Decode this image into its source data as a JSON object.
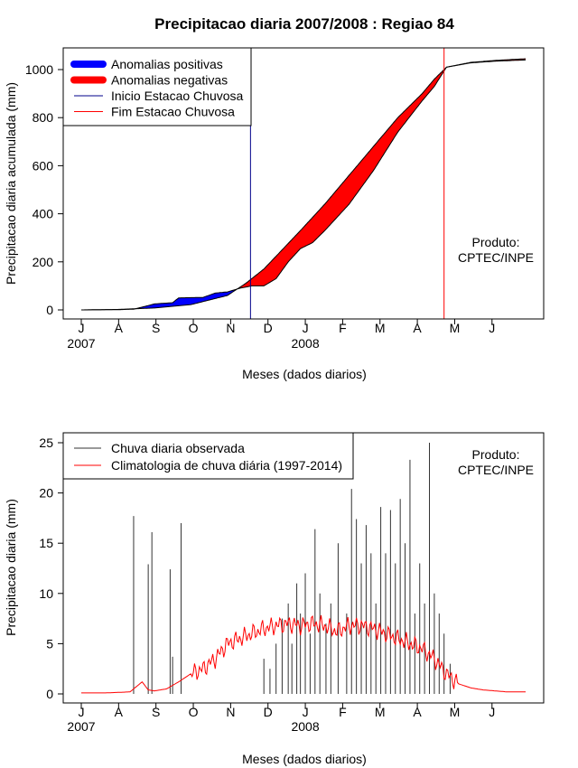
{
  "title": "Precipitacao diaria 2007/2008 : Regiao 84",
  "colors": {
    "positive": "#0000ff",
    "negative": "#ff0000",
    "start_line": "#00008b",
    "end_line": "#ff0000",
    "observed": "#333333",
    "climatology": "#ff0000"
  },
  "chart_data": [
    {
      "type": "area",
      "title": "Precipitacao diaria 2007/2008 : Regiao 84",
      "xlabel": "Meses (dados diarios)",
      "ylabel": "Precipitacao diaria acumulada (mm)",
      "x_ticks": [
        "J",
        "A",
        "S",
        "O",
        "N",
        "D",
        "J",
        "F",
        "M",
        "A",
        "M",
        "J"
      ],
      "year_labels": [
        {
          "month_index": 0,
          "label": "2007"
        },
        {
          "month_index": 6,
          "label": "2008"
        }
      ],
      "x_range": [
        0,
        365
      ],
      "ylim": [
        0,
        1100
      ],
      "y_ticks": [
        0,
        200,
        400,
        600,
        800,
        1000
      ],
      "legend_position": "top-left",
      "legend": [
        {
          "label": "Anomalias positivas",
          "kind": "thick",
          "color": "#0000ff"
        },
        {
          "label": "Anomalias negativas",
          "kind": "thick",
          "color": "#ff0000"
        },
        {
          "label": "Inicio Estacao Chuvosa",
          "kind": "thin",
          "color": "#00008b"
        },
        {
          "label": "Fim Estacao Chuvosa",
          "kind": "thin",
          "color": "#ff0000"
        }
      ],
      "annotation": [
        "Produto:",
        "CPTEC/INPE"
      ],
      "start_day": 139,
      "end_day": 298,
      "climatology_cumulative": {
        "x": [
          0,
          30,
          60,
          90,
          120,
          135,
          150,
          165,
          180,
          200,
          220,
          240,
          260,
          280,
          290,
          300,
          320,
          340,
          365
        ],
        "y": [
          0,
          2,
          8,
          22,
          60,
          110,
          170,
          250,
          330,
          440,
          560,
          680,
          800,
          900,
          960,
          1010,
          1030,
          1038,
          1045
        ]
      },
      "observed_cumulative": {
        "x": [
          0,
          30,
          43,
          55,
          60,
          75,
          80,
          100,
          110,
          120,
          130,
          140,
          150,
          160,
          170,
          180,
          190,
          200,
          220,
          240,
          260,
          280,
          290,
          300,
          320,
          340,
          365
        ],
        "y": [
          0,
          1,
          3,
          18,
          25,
          30,
          50,
          52,
          70,
          75,
          90,
          100,
          100,
          130,
          200,
          255,
          280,
          330,
          440,
          580,
          740,
          870,
          930,
          1010,
          1028,
          1035,
          1040
        ]
      }
    },
    {
      "type": "bar",
      "xlabel": "Meses (dados diarios)",
      "ylabel": "Precipitacao diaria (mm)",
      "x_ticks": [
        "J",
        "A",
        "S",
        "O",
        "N",
        "D",
        "J",
        "F",
        "M",
        "A",
        "M",
        "J"
      ],
      "year_labels": [
        {
          "month_index": 0,
          "label": "2007"
        },
        {
          "month_index": 6,
          "label": "2008"
        }
      ],
      "x_range": [
        0,
        365
      ],
      "ylim": [
        -0.8,
        26
      ],
      "y_ticks": [
        0,
        5,
        10,
        15,
        20,
        25
      ],
      "legend_position": "top-left",
      "legend": [
        {
          "label": "Chuva diaria observada",
          "color": "#333333"
        },
        {
          "label": "Climatologia de chuva diária (1997-2014)",
          "color": "#ff0000"
        }
      ],
      "annotation": [
        "Produto:",
        "CPTEC/INPE"
      ],
      "observed_daily_notable": [
        [
          43,
          17.7
        ],
        [
          55,
          12.9
        ],
        [
          58,
          16.1
        ],
        [
          73,
          12.4
        ],
        [
          75,
          3.7
        ],
        [
          82,
          17.0
        ],
        [
          150,
          3.5
        ],
        [
          155,
          2.5
        ],
        [
          160,
          5.0
        ],
        [
          165,
          7.5
        ],
        [
          170,
          9.0
        ],
        [
          173,
          5.0
        ],
        [
          177,
          11.0
        ],
        [
          180,
          8.0
        ],
        [
          184,
          12.0
        ],
        [
          188,
          6.0
        ],
        [
          192,
          16.4
        ],
        [
          196,
          10.0
        ],
        [
          201,
          7.0
        ],
        [
          205,
          9.0
        ],
        [
          211,
          15.0
        ],
        [
          218,
          8.0
        ],
        [
          222,
          20.4
        ],
        [
          226,
          17.4
        ],
        [
          230,
          13.0
        ],
        [
          234,
          16.8
        ],
        [
          238,
          14.0
        ],
        [
          242,
          9.0
        ],
        [
          246,
          18.6
        ],
        [
          250,
          14.0
        ],
        [
          254,
          18.3
        ],
        [
          258,
          13.0
        ],
        [
          262,
          19.4
        ],
        [
          266,
          15.0
        ],
        [
          270,
          23.3
        ],
        [
          274,
          8.0
        ],
        [
          278,
          13.0
        ],
        [
          282,
          9.0
        ],
        [
          286,
          25.0
        ],
        [
          290,
          10.0
        ],
        [
          294,
          8.0
        ],
        [
          298,
          6.0
        ],
        [
          303,
          3.0
        ]
      ],
      "climatology_daily": {
        "x": [
          0,
          20,
          40,
          50,
          55,
          60,
          70,
          80,
          90,
          100,
          110,
          120,
          130,
          140,
          150,
          160,
          170,
          180,
          190,
          200,
          210,
          220,
          230,
          240,
          250,
          260,
          270,
          280,
          290,
          300,
          310,
          320,
          330,
          340,
          350,
          365
        ],
        "y": [
          0.1,
          0.1,
          0.2,
          1.2,
          0.4,
          0.3,
          0.5,
          1.2,
          2.0,
          2.5,
          3.5,
          5.0,
          5.5,
          6.0,
          6.5,
          6.8,
          7.0,
          6.8,
          7.0,
          6.8,
          6.2,
          6.8,
          6.8,
          6.5,
          6.0,
          5.5,
          5.0,
          4.5,
          3.5,
          2.0,
          1.0,
          0.6,
          0.4,
          0.3,
          0.2,
          0.2
        ]
      }
    }
  ]
}
